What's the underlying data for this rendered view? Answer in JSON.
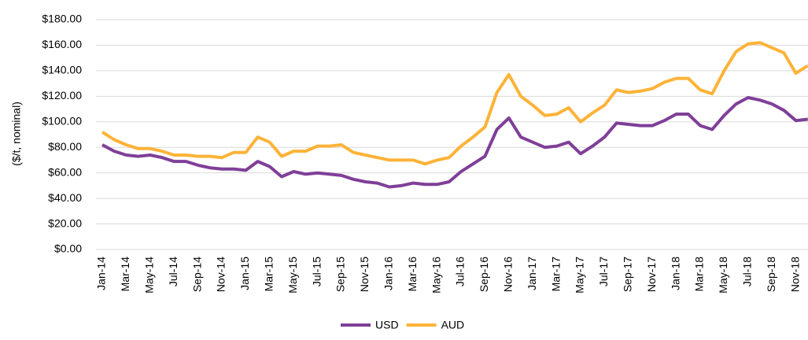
{
  "chart_data": {
    "type": "line",
    "y_label": "($/t, nominal)",
    "categories": [
      "Jan-14",
      null,
      "Mar-14",
      null,
      "May-14",
      null,
      "Jul-14",
      null,
      "Sep-14",
      null,
      "Nov-14",
      null,
      "Jan-15",
      null,
      "Mar-15",
      null,
      "May-15",
      null,
      "Jul-15",
      null,
      "Sep-15",
      null,
      "Nov-15",
      null,
      "Jan-16",
      null,
      "Mar-16",
      null,
      "May-16",
      null,
      "Jul-16",
      null,
      "Sep-16",
      null,
      "Nov-16",
      null,
      "Jan-17",
      null,
      "Mar-17",
      null,
      "May-17",
      null,
      "Jul-17",
      null,
      "Sep-17",
      null,
      "Nov-17",
      null,
      "Jan-18",
      null,
      "Mar-18",
      null,
      "May-18",
      null,
      "Jul-18",
      null,
      "Sep-18",
      null,
      "Nov-18",
      null
    ],
    "series": [
      {
        "name": "USD",
        "color": "#7f3f98",
        "values": [
          82,
          77,
          74,
          73,
          74,
          72,
          69,
          69,
          66,
          64,
          63,
          63,
          62,
          69,
          65,
          57,
          61,
          59,
          60,
          59,
          58,
          55,
          53,
          52,
          49,
          50,
          52,
          51,
          51,
          53,
          61,
          67,
          73,
          94,
          103,
          88,
          84,
          80,
          81,
          84,
          75,
          81,
          88,
          99,
          98,
          97,
          97,
          101,
          106,
          106,
          97,
          94,
          105,
          114,
          119,
          117,
          114,
          109,
          101,
          102
        ]
      },
      {
        "name": "AUD",
        "color": "#fdb338",
        "values": [
          92,
          86,
          82,
          79,
          79,
          77,
          74,
          74,
          73,
          73,
          72,
          76,
          76,
          88,
          84,
          73,
          77,
          77,
          81,
          81,
          82,
          76,
          74,
          72,
          70,
          70,
          70,
          67,
          70,
          72,
          81,
          88,
          96,
          123,
          137,
          120,
          113,
          105,
          106,
          111,
          100,
          107,
          113,
          125,
          123,
          124,
          126,
          131,
          134,
          134,
          125,
          122,
          140,
          155,
          161,
          162,
          158,
          154,
          138,
          144
        ]
      }
    ],
    "ylim": [
      0,
      180
    ],
    "yticks": [
      {
        "value": 0,
        "label": "$0.00"
      },
      {
        "value": 20,
        "label": "$20.00"
      },
      {
        "value": 40,
        "label": "$40.00"
      },
      {
        "value": 60,
        "label": "$60.00"
      },
      {
        "value": 80,
        "label": "$80.00"
      },
      {
        "value": 100,
        "label": "$100.00"
      },
      {
        "value": 120,
        "label": "$120.00"
      },
      {
        "value": 140,
        "label": "$140.00"
      },
      {
        "value": 160,
        "label": "$160.00"
      },
      {
        "value": 180,
        "label": "$180.00"
      }
    ],
    "grid": true,
    "legend": "bottom"
  }
}
